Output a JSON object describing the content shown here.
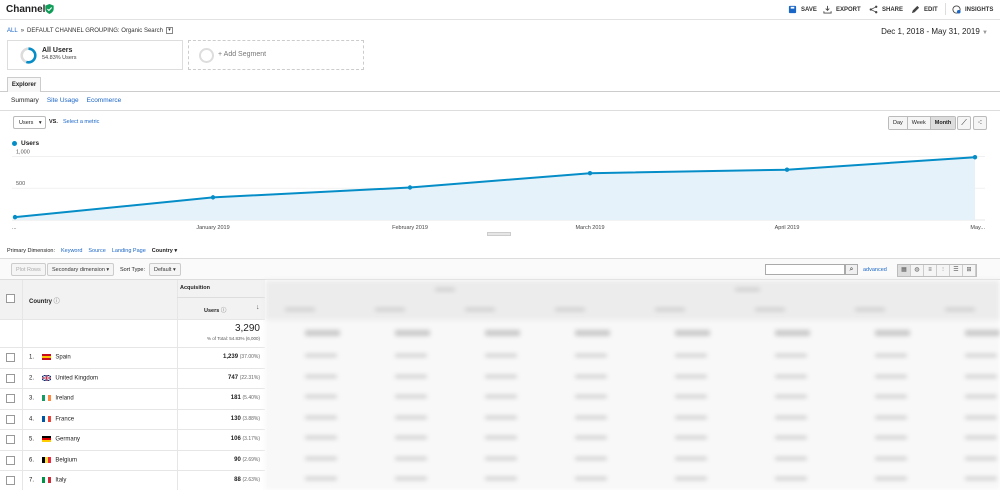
{
  "header": {
    "title": "Channels",
    "actions": [
      {
        "label": "SAVE",
        "icon": "save-icon"
      },
      {
        "label": "EXPORT",
        "icon": "export-icon"
      },
      {
        "label": "SHARE",
        "icon": "share-icon"
      },
      {
        "label": "EDIT",
        "icon": "edit-icon"
      },
      {
        "label": "INSIGHTS",
        "icon": "insights-icon"
      }
    ]
  },
  "breadcrumb": {
    "all": "ALL",
    "separator": "»",
    "path": "DEFAULT CHANNEL GROUPING: Organic Search"
  },
  "date_range": "Dec 1, 2018 - May 31, 2019",
  "segments": {
    "active": {
      "name": "All Users",
      "sub": "54.83% Users",
      "fraction": 0.5483
    },
    "add_label": "+ Add Segment"
  },
  "tabs": {
    "explorer": "Explorer",
    "subtabs": [
      "Summary",
      "Site Usage",
      "Ecommerce"
    ]
  },
  "chart_controls": {
    "metric": "Users",
    "vs": "VS.",
    "select_metric": "Select a metric",
    "periods": [
      "Day",
      "Week",
      "Month"
    ],
    "active_period": "Month"
  },
  "chart_data": {
    "type": "area",
    "series": [
      {
        "name": "Users",
        "values": [
          45,
          355,
          510,
          735,
          790,
          985
        ]
      }
    ],
    "x": [
      "...",
      "January 2019",
      "February 2019",
      "March 2019",
      "April 2019",
      "May..."
    ],
    "y_ticks": [
      "1,000",
      "500"
    ],
    "ylim": [
      0,
      1130
    ],
    "color": "#058dc7"
  },
  "primary_dimension": {
    "label": "Primary Dimension:",
    "options": [
      "Keyword",
      "Source",
      "Landing Page",
      "Country"
    ],
    "current": "Country"
  },
  "table_toolbar": {
    "plot_rows": "Plot Rows",
    "secondary_dimension": "Secondary dimension",
    "sort_type_label": "Sort Type:",
    "sort_type": "Default",
    "advanced": "advanced"
  },
  "table": {
    "group_header": "Acquisition",
    "dimension_header": "Country",
    "metric_header": "Users",
    "total": {
      "value": "3,290",
      "sub": "% of Total: 54.83% (6,000)"
    },
    "rows": [
      {
        "rank": "1.",
        "country": "Spain",
        "users": "1,239",
        "pct": "(37.00%)",
        "flag": "es"
      },
      {
        "rank": "2.",
        "country": "United Kingdom",
        "users": "747",
        "pct": "(22.31%)",
        "flag": "gb"
      },
      {
        "rank": "3.",
        "country": "Ireland",
        "users": "181",
        "pct": "(5.40%)",
        "flag": "ie"
      },
      {
        "rank": "4.",
        "country": "France",
        "users": "130",
        "pct": "(3.88%)",
        "flag": "fr"
      },
      {
        "rank": "5.",
        "country": "Germany",
        "users": "106",
        "pct": "(3.17%)",
        "flag": "de"
      },
      {
        "rank": "6.",
        "country": "Belgium",
        "users": "90",
        "pct": "(2.69%)",
        "flag": "be"
      },
      {
        "rank": "7.",
        "country": "Italy",
        "users": "88",
        "pct": "(2.63%)",
        "flag": "it"
      }
    ]
  }
}
